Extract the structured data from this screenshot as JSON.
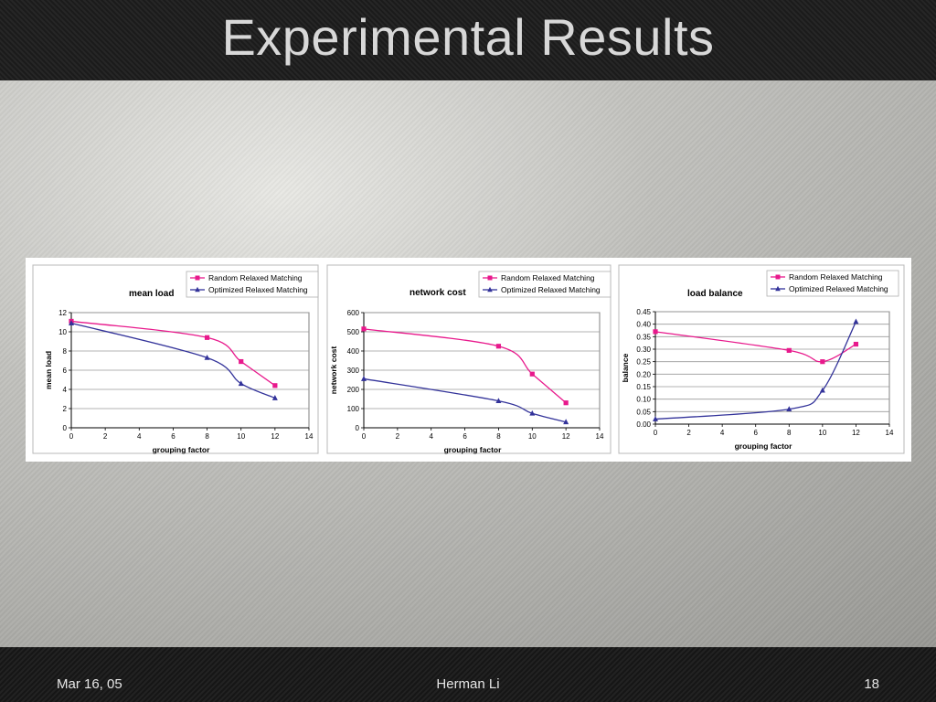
{
  "slide": {
    "title": "Experimental Results",
    "footer": {
      "date": "Mar 16, 05",
      "author": "Herman Li",
      "page": "18"
    }
  },
  "colors": {
    "random": "#e8198c",
    "optimized": "#33339a",
    "grid": "#9a9a9a"
  },
  "chart_data": [
    {
      "type": "line",
      "title": "mean load",
      "xlabel": "grouping factor",
      "ylabel": "mean load",
      "xlim": [
        0,
        14
      ],
      "ylim": [
        0,
        12
      ],
      "xticks": [
        0,
        2,
        4,
        6,
        8,
        10,
        12,
        14
      ],
      "yticks": [
        0,
        2,
        4,
        6,
        8,
        10,
        12
      ],
      "ytick_labels": [
        "0",
        "2",
        "4",
        "6",
        "8",
        "10",
        "12"
      ],
      "grid": true,
      "legend": "top-right",
      "series": [
        {
          "name": "Random Relaxed Matching",
          "marker": "square",
          "x": [
            0,
            8,
            10,
            12
          ],
          "y": [
            11.1,
            9.4,
            6.9,
            4.4
          ]
        },
        {
          "name": "Optimized Relaxed Matching",
          "marker": "triangle",
          "x": [
            0,
            8,
            10,
            12
          ],
          "y": [
            10.9,
            7.3,
            4.6,
            3.1
          ]
        }
      ]
    },
    {
      "type": "line",
      "title": "network cost",
      "xlabel": "grouping factor",
      "ylabel": "network cost",
      "xlim": [
        0,
        14
      ],
      "ylim": [
        0,
        600
      ],
      "xticks": [
        0,
        2,
        4,
        6,
        8,
        10,
        12,
        14
      ],
      "yticks": [
        0,
        100,
        200,
        300,
        400,
        500,
        600
      ],
      "ytick_labels": [
        "0",
        "100",
        "200",
        "300",
        "400",
        "500",
        "600"
      ],
      "grid": true,
      "legend": "top-right",
      "series": [
        {
          "name": "Random Relaxed Matching",
          "marker": "square",
          "x": [
            0,
            8,
            10,
            12
          ],
          "y": [
            515,
            425,
            280,
            130
          ]
        },
        {
          "name": "Optimized Relaxed Matching",
          "marker": "triangle",
          "x": [
            0,
            8,
            10,
            12
          ],
          "y": [
            255,
            140,
            75,
            30
          ]
        }
      ]
    },
    {
      "type": "line",
      "title": "load balance",
      "xlabel": "grouping factor",
      "ylabel": "balance",
      "xlim": [
        0,
        14
      ],
      "ylim": [
        0,
        0.45
      ],
      "xticks": [
        0,
        2,
        4,
        6,
        8,
        10,
        12,
        14
      ],
      "yticks": [
        0,
        0.05,
        0.1,
        0.15,
        0.2,
        0.25,
        0.3,
        0.35,
        0.4,
        0.45
      ],
      "ytick_labels": [
        "0.00",
        "0.05",
        "0.10",
        "0.15",
        "0.20",
        "0.25",
        "0.30",
        "0.35",
        "0.40",
        "0.45"
      ],
      "grid": true,
      "legend": "top-right",
      "series": [
        {
          "name": "Random Relaxed Matching",
          "marker": "square",
          "x": [
            0,
            8,
            10,
            12
          ],
          "y": [
            0.37,
            0.295,
            0.25,
            0.32
          ]
        },
        {
          "name": "Optimized Relaxed Matching",
          "marker": "triangle",
          "x": [
            0,
            8,
            10,
            12
          ],
          "y": [
            0.02,
            0.06,
            0.135,
            0.41
          ]
        }
      ]
    }
  ]
}
